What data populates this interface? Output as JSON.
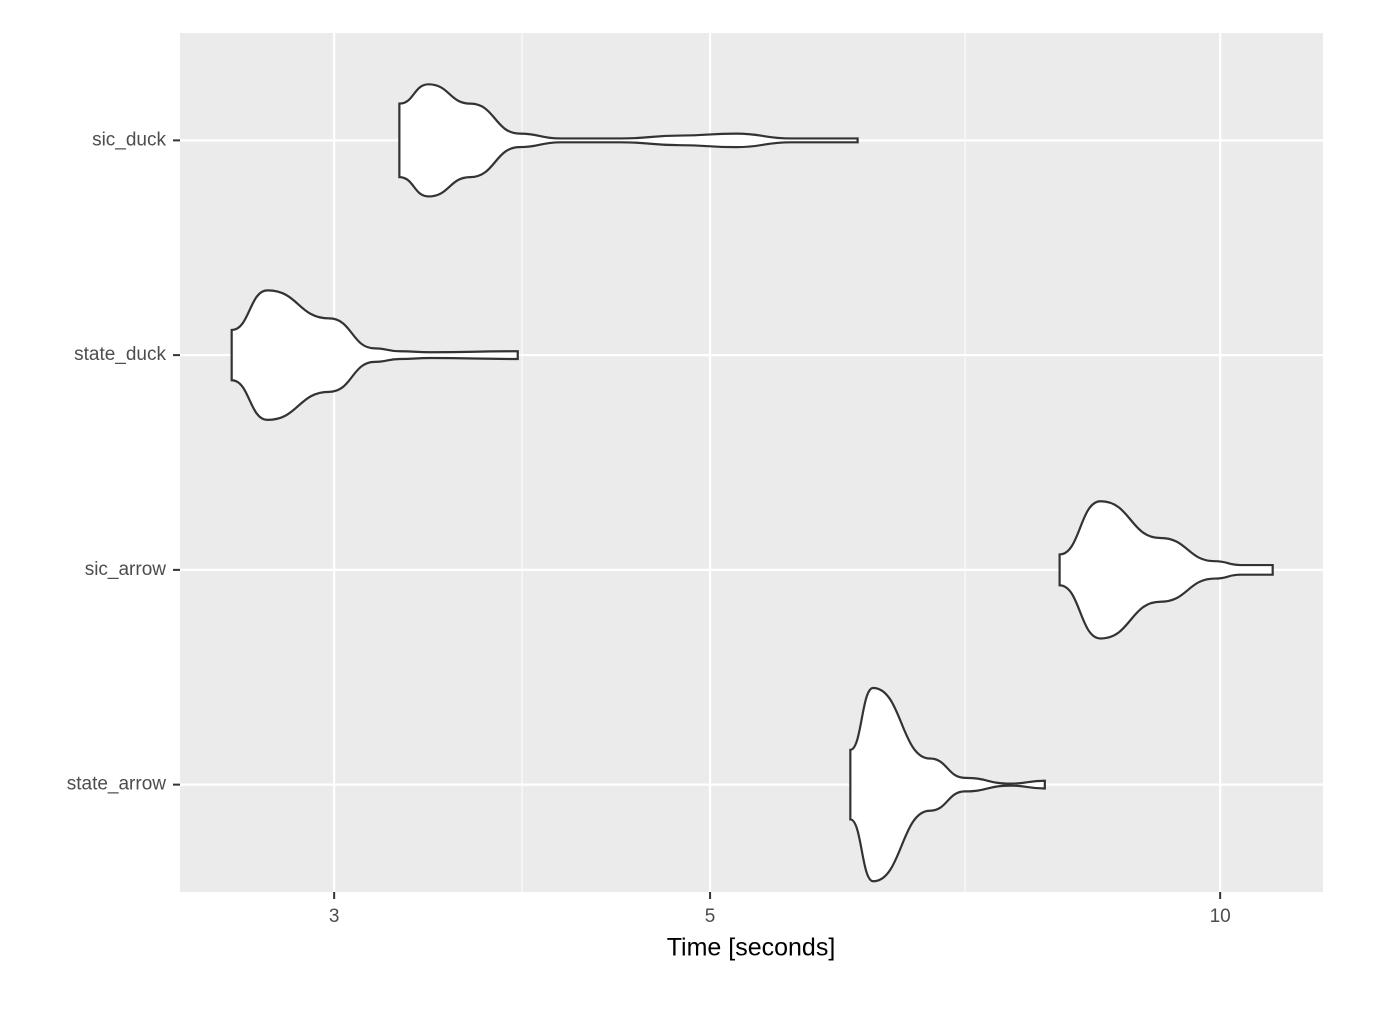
{
  "chart_data": {
    "type": "violin",
    "x_label": "Time [seconds]",
    "categories": [
      "sic_duck",
      "state_duck",
      "sic_arrow",
      "state_arrow"
    ],
    "violins": [
      {
        "x": [
          3.278,
          3.41,
          3.61,
          3.86,
          4.08,
          4.43,
          4.8,
          5.18,
          5.58,
          6.11
        ],
        "widths": [
          0.38,
          0.58,
          0.38,
          0.07,
          0.02,
          0.02,
          0.05,
          0.07,
          0.02,
          0.02
        ]
      },
      {
        "x": [
          2.61,
          2.74,
          2.98,
          3.17,
          3.28,
          3.42,
          3.85
        ],
        "widths": [
          0.26,
          0.67,
          0.38,
          0.07,
          0.04,
          0.03,
          0.04
        ]
      },
      {
        "x": [
          8.04,
          8.5,
          9.22,
          9.93,
          10.28,
          10.74
        ],
        "widths": [
          0.16,
          0.71,
          0.33,
          0.09,
          0.05,
          0.05
        ]
      },
      {
        "x": [
          6.05,
          6.24,
          6.74,
          7.07,
          7.52,
          7.88
        ],
        "widths": [
          0.36,
          1.0,
          0.27,
          0.07,
          0.01,
          0.04
        ]
      }
    ],
    "fill": "#ffffff",
    "outline": "#333333",
    "xscale": "log",
    "xlim": [
      2.433,
      11.5
    ],
    "xticks": [
      3,
      5,
      10
    ],
    "grid": true
  }
}
